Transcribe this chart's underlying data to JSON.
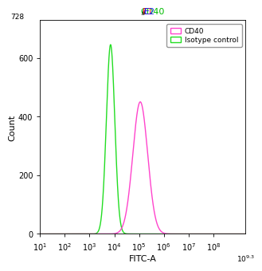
{
  "title_parts": [
    "CD40",
    "/ ",
    "E1",
    "/ ",
    "E2"
  ],
  "title_colors": [
    "#00bb00",
    "#000000",
    "#ff2020",
    "#000000",
    "#2020ff"
  ],
  "xlabel": "FITC-A",
  "ylabel": "Count",
  "xlim_log": [
    1,
    9.3
  ],
  "ylim": [
    0,
    728
  ],
  "yticks": [
    0,
    200,
    400,
    600
  ],
  "ymax_label": "728",
  "legend_labels": [
    "CD40",
    "Isotype control"
  ],
  "cd40_color": "#ff44cc",
  "isotype_color": "#22dd22",
  "cd40_peak_log": 5.05,
  "cd40_peak_height": 450,
  "cd40_sigma_log": 0.3,
  "isotype_peak_log": 3.85,
  "isotype_peak_height": 645,
  "isotype_sigma_log": 0.17,
  "background_color": "#ffffff",
  "line_width": 1.0,
  "xtick_exponents": [
    1,
    2,
    3,
    4,
    5,
    6,
    7,
    8
  ],
  "xtick_last_label": "10^9.3"
}
